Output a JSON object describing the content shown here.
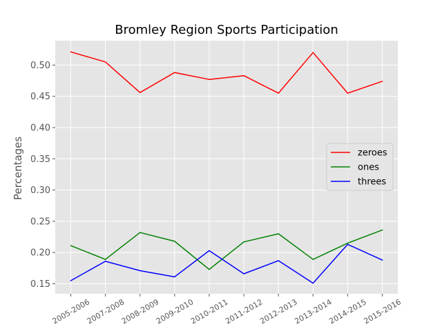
{
  "chart_data": {
    "type": "line",
    "title": "Bromley Region Sports Participation",
    "xlabel": "",
    "ylabel": "Percentages",
    "categories": [
      "2005-2006",
      "2007-2008",
      "2008-2009",
      "2009-2010",
      "2010-2011",
      "2011-2012",
      "2012-2013",
      "2013-2014",
      "2014-2015",
      "2015-2016"
    ],
    "series": [
      {
        "name": "zeroes",
        "color": "#ff0000",
        "values": [
          0.521,
          0.505,
          0.456,
          0.488,
          0.477,
          0.483,
          0.455,
          0.52,
          0.455,
          0.474
        ]
      },
      {
        "name": "ones",
        "color": "#008000",
        "values": [
          0.211,
          0.189,
          0.232,
          0.218,
          0.173,
          0.217,
          0.23,
          0.189,
          0.215,
          0.236
        ]
      },
      {
        "name": "threes",
        "color": "#0000ff",
        "values": [
          0.155,
          0.186,
          0.171,
          0.161,
          0.203,
          0.166,
          0.187,
          0.151,
          0.213,
          0.188
        ]
      }
    ],
    "yticks": [
      "0.15",
      "0.20",
      "0.25",
      "0.30",
      "0.35",
      "0.40",
      "0.45",
      "0.50"
    ],
    "ylim": [
      0.134,
      0.539
    ],
    "grid": true,
    "legend_position": "center-right",
    "style": "ggplot"
  }
}
